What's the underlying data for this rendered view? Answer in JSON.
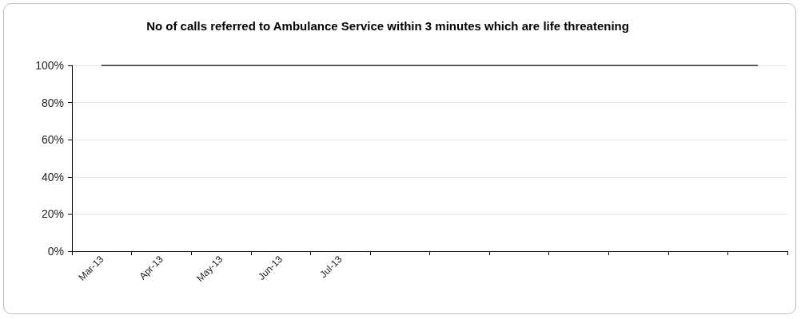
{
  "chart_data": {
    "type": "line",
    "title": "No of calls referred to Ambulance Service within 3 minutes which are life threatening",
    "categories": [
      "Mar-13",
      "Apr-13",
      "May-13",
      "Jun-13",
      "Jul-13",
      null,
      null,
      null,
      null,
      null,
      null,
      null
    ],
    "series": [
      {
        "color": "#1a1208",
        "values": [
          100,
          100,
          100,
          100,
          100,
          100,
          100,
          100,
          100,
          100,
          100,
          100
        ]
      }
    ],
    "ylim": [
      0,
      100
    ],
    "yticks": [
      {
        "value": 0,
        "label": "0%"
      },
      {
        "value": 20,
        "label": "20%"
      },
      {
        "value": 40,
        "label": "40%"
      },
      {
        "value": 60,
        "label": "60%"
      },
      {
        "value": 80,
        "label": "80%"
      },
      {
        "value": 100,
        "label": "100%"
      }
    ],
    "grid": "y",
    "marker": "none",
    "line_style": "solid"
  }
}
